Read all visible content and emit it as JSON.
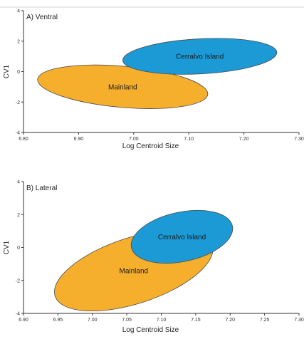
{
  "chart_data": [
    {
      "type": "scatter",
      "title": "A) Ventral",
      "xlabel": "Log Centroid Size",
      "ylabel": "CV1",
      "xlim": [
        6.8,
        7.3
      ],
      "ylim": [
        -4,
        4
      ],
      "xticks": [
        "6.80",
        "6.90",
        "7.00",
        "7.10",
        "7.20",
        "7.30"
      ],
      "yticks": [
        "4",
        "2",
        "0",
        "-2",
        "-4"
      ],
      "grid": false,
      "groups": [
        {
          "name": "Mainland",
          "color": "#F6AE2D",
          "center": [
            6.98,
            -1.0
          ],
          "rx": 0.155,
          "ry": 1.35,
          "rotation": 5
        },
        {
          "name": "Cerralvo Island",
          "color": "#1C9AD6",
          "center": [
            7.12,
            1.0
          ],
          "rx": 0.14,
          "ry": 1.15,
          "rotation": -3
        }
      ]
    },
    {
      "type": "scatter",
      "title": "B) Lateral",
      "xlabel": "Log Centroid Size",
      "ylabel": "CV1",
      "xlim": [
        6.9,
        7.3
      ],
      "ylim": [
        -4,
        4
      ],
      "xticks": [
        "6.90",
        "6.95",
        "7.00",
        "7.05",
        "7.10",
        "7.15",
        "7.20",
        "7.25",
        "7.30"
      ],
      "yticks": [
        "4",
        "2",
        "0",
        "-2",
        "-4"
      ],
      "grid": false,
      "groups": [
        {
          "name": "Mainland",
          "color": "#F6AE2D",
          "center": [
            7.06,
            -1.4
          ],
          "rx": 0.12,
          "ry": 2.0,
          "rotation": -18
        },
        {
          "name": "Cerralvo Island",
          "color": "#1C9AD6",
          "center": [
            7.13,
            0.65
          ],
          "rx": 0.075,
          "ry": 1.5,
          "rotation": -12
        }
      ]
    }
  ]
}
